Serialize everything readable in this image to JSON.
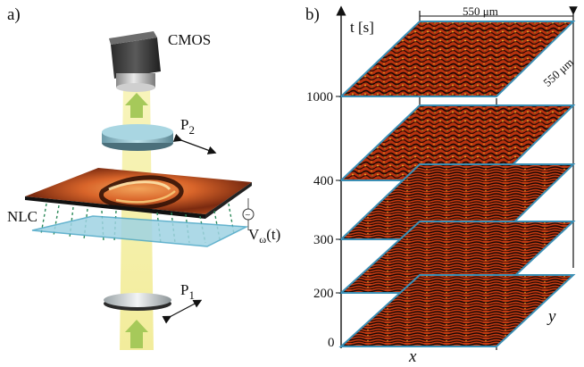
{
  "panel_a": {
    "label": "a)",
    "camera_label": "CMOS",
    "polarizer_top_label": "P",
    "polarizer_top_sub": "2",
    "polarizer_bottom_label": "P",
    "polarizer_bottom_sub": "1",
    "cell_label": "NLC",
    "voltage_label": "V",
    "voltage_sub": "ω",
    "voltage_suffix": "(t)"
  },
  "panel_b": {
    "label": "b)",
    "time_axis_label": "t [s]",
    "width_label": "550 μm",
    "depth_label": "550 μm",
    "x_label": "x",
    "y_label": "y",
    "time_ticks": [
      "0",
      "200",
      "300",
      "400",
      "1000"
    ]
  },
  "colors": {
    "light_beam": "#f3ee8c",
    "arrow_green": "#a6c95a",
    "texture_base": "#c83a12",
    "texture_dark": "#1b0a05",
    "texture_highlight": "#e8a324",
    "slab_edge": "#3a8fb5",
    "glass": "#9fd3e3"
  }
}
